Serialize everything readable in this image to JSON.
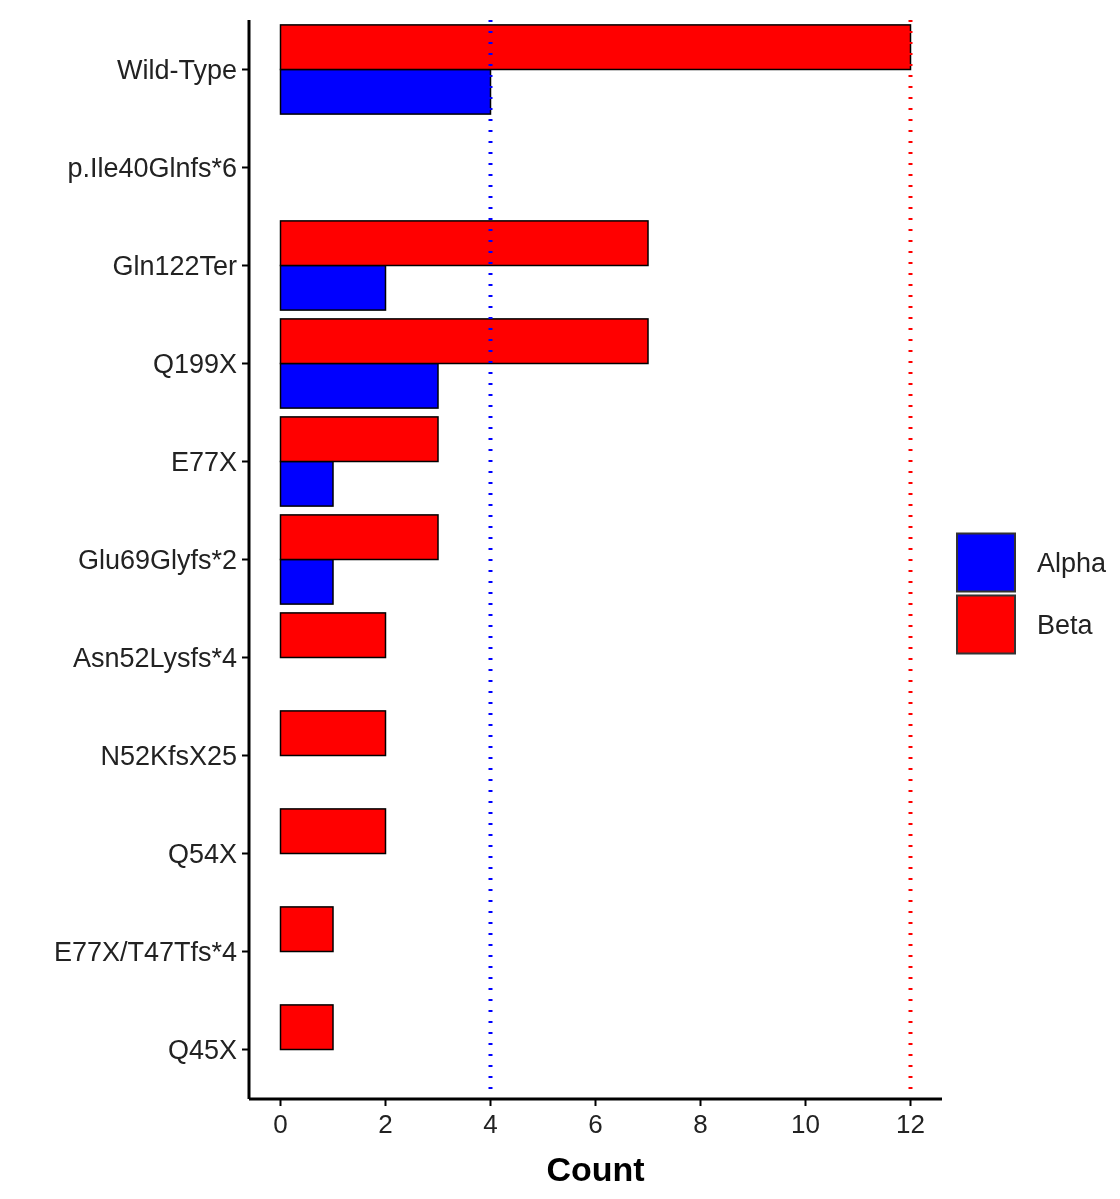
{
  "chart_data": {
    "type": "bar",
    "orientation": "horizontal",
    "xlabel": "Count",
    "categories": [
      "Wild-Type",
      "p.Ile40Glnfs*6",
      "Gln122Ter",
      "Q199X",
      "E77X",
      "Glu69Glyfs*2",
      "Asn52Lysfs*4",
      "N52KfsX25",
      "Q54X",
      "E77X/T47Tfs*4",
      "Q45X"
    ],
    "series": [
      {
        "name": "Alpha",
        "color": "#0000ff",
        "values": [
          4,
          0,
          2,
          3,
          1,
          1,
          0,
          0,
          0,
          0,
          0
        ]
      },
      {
        "name": "Beta",
        "color": "#ff0000",
        "values": [
          12,
          0,
          7,
          7,
          3,
          3,
          2,
          2,
          2,
          1,
          1
        ]
      }
    ],
    "xlim": [
      -0.6,
      12.6
    ],
    "xticks": [
      0,
      2,
      4,
      6,
      8,
      10,
      12
    ],
    "ref_lines": [
      {
        "axis": "x",
        "value": 4,
        "color": "#0000ff",
        "line_style": "dotted"
      },
      {
        "axis": "x",
        "value": 12,
        "color": "#ff0000",
        "line_style": "dotted"
      }
    ],
    "grid": false,
    "legend": "right"
  }
}
